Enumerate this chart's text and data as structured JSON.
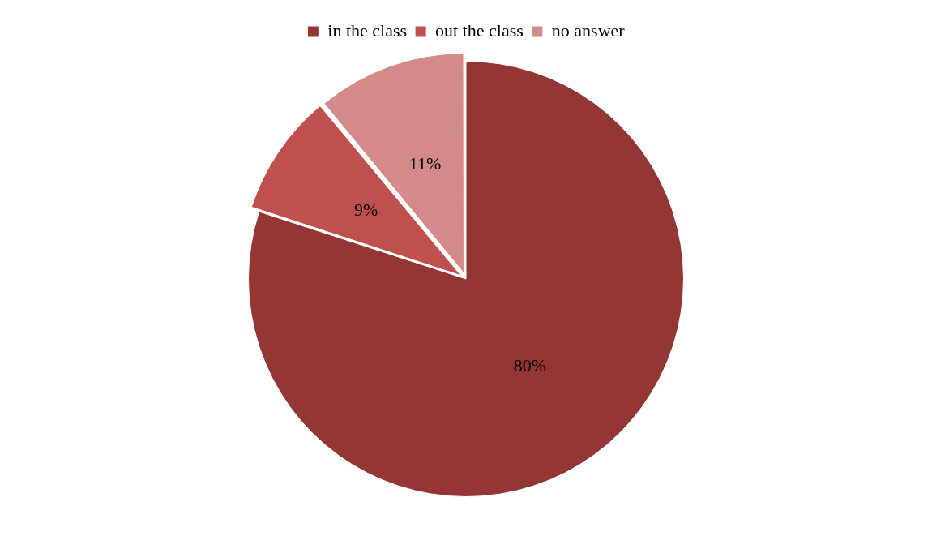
{
  "chart_data": {
    "type": "pie",
    "categories": [
      "in the class",
      "out the class",
      "no answer"
    ],
    "values": [
      80,
      9,
      11
    ],
    "colors": [
      "#943634",
      "#c0504d",
      "#d48a88"
    ],
    "value_labels": [
      "80%",
      "9%",
      "11%"
    ],
    "legend": "top"
  }
}
